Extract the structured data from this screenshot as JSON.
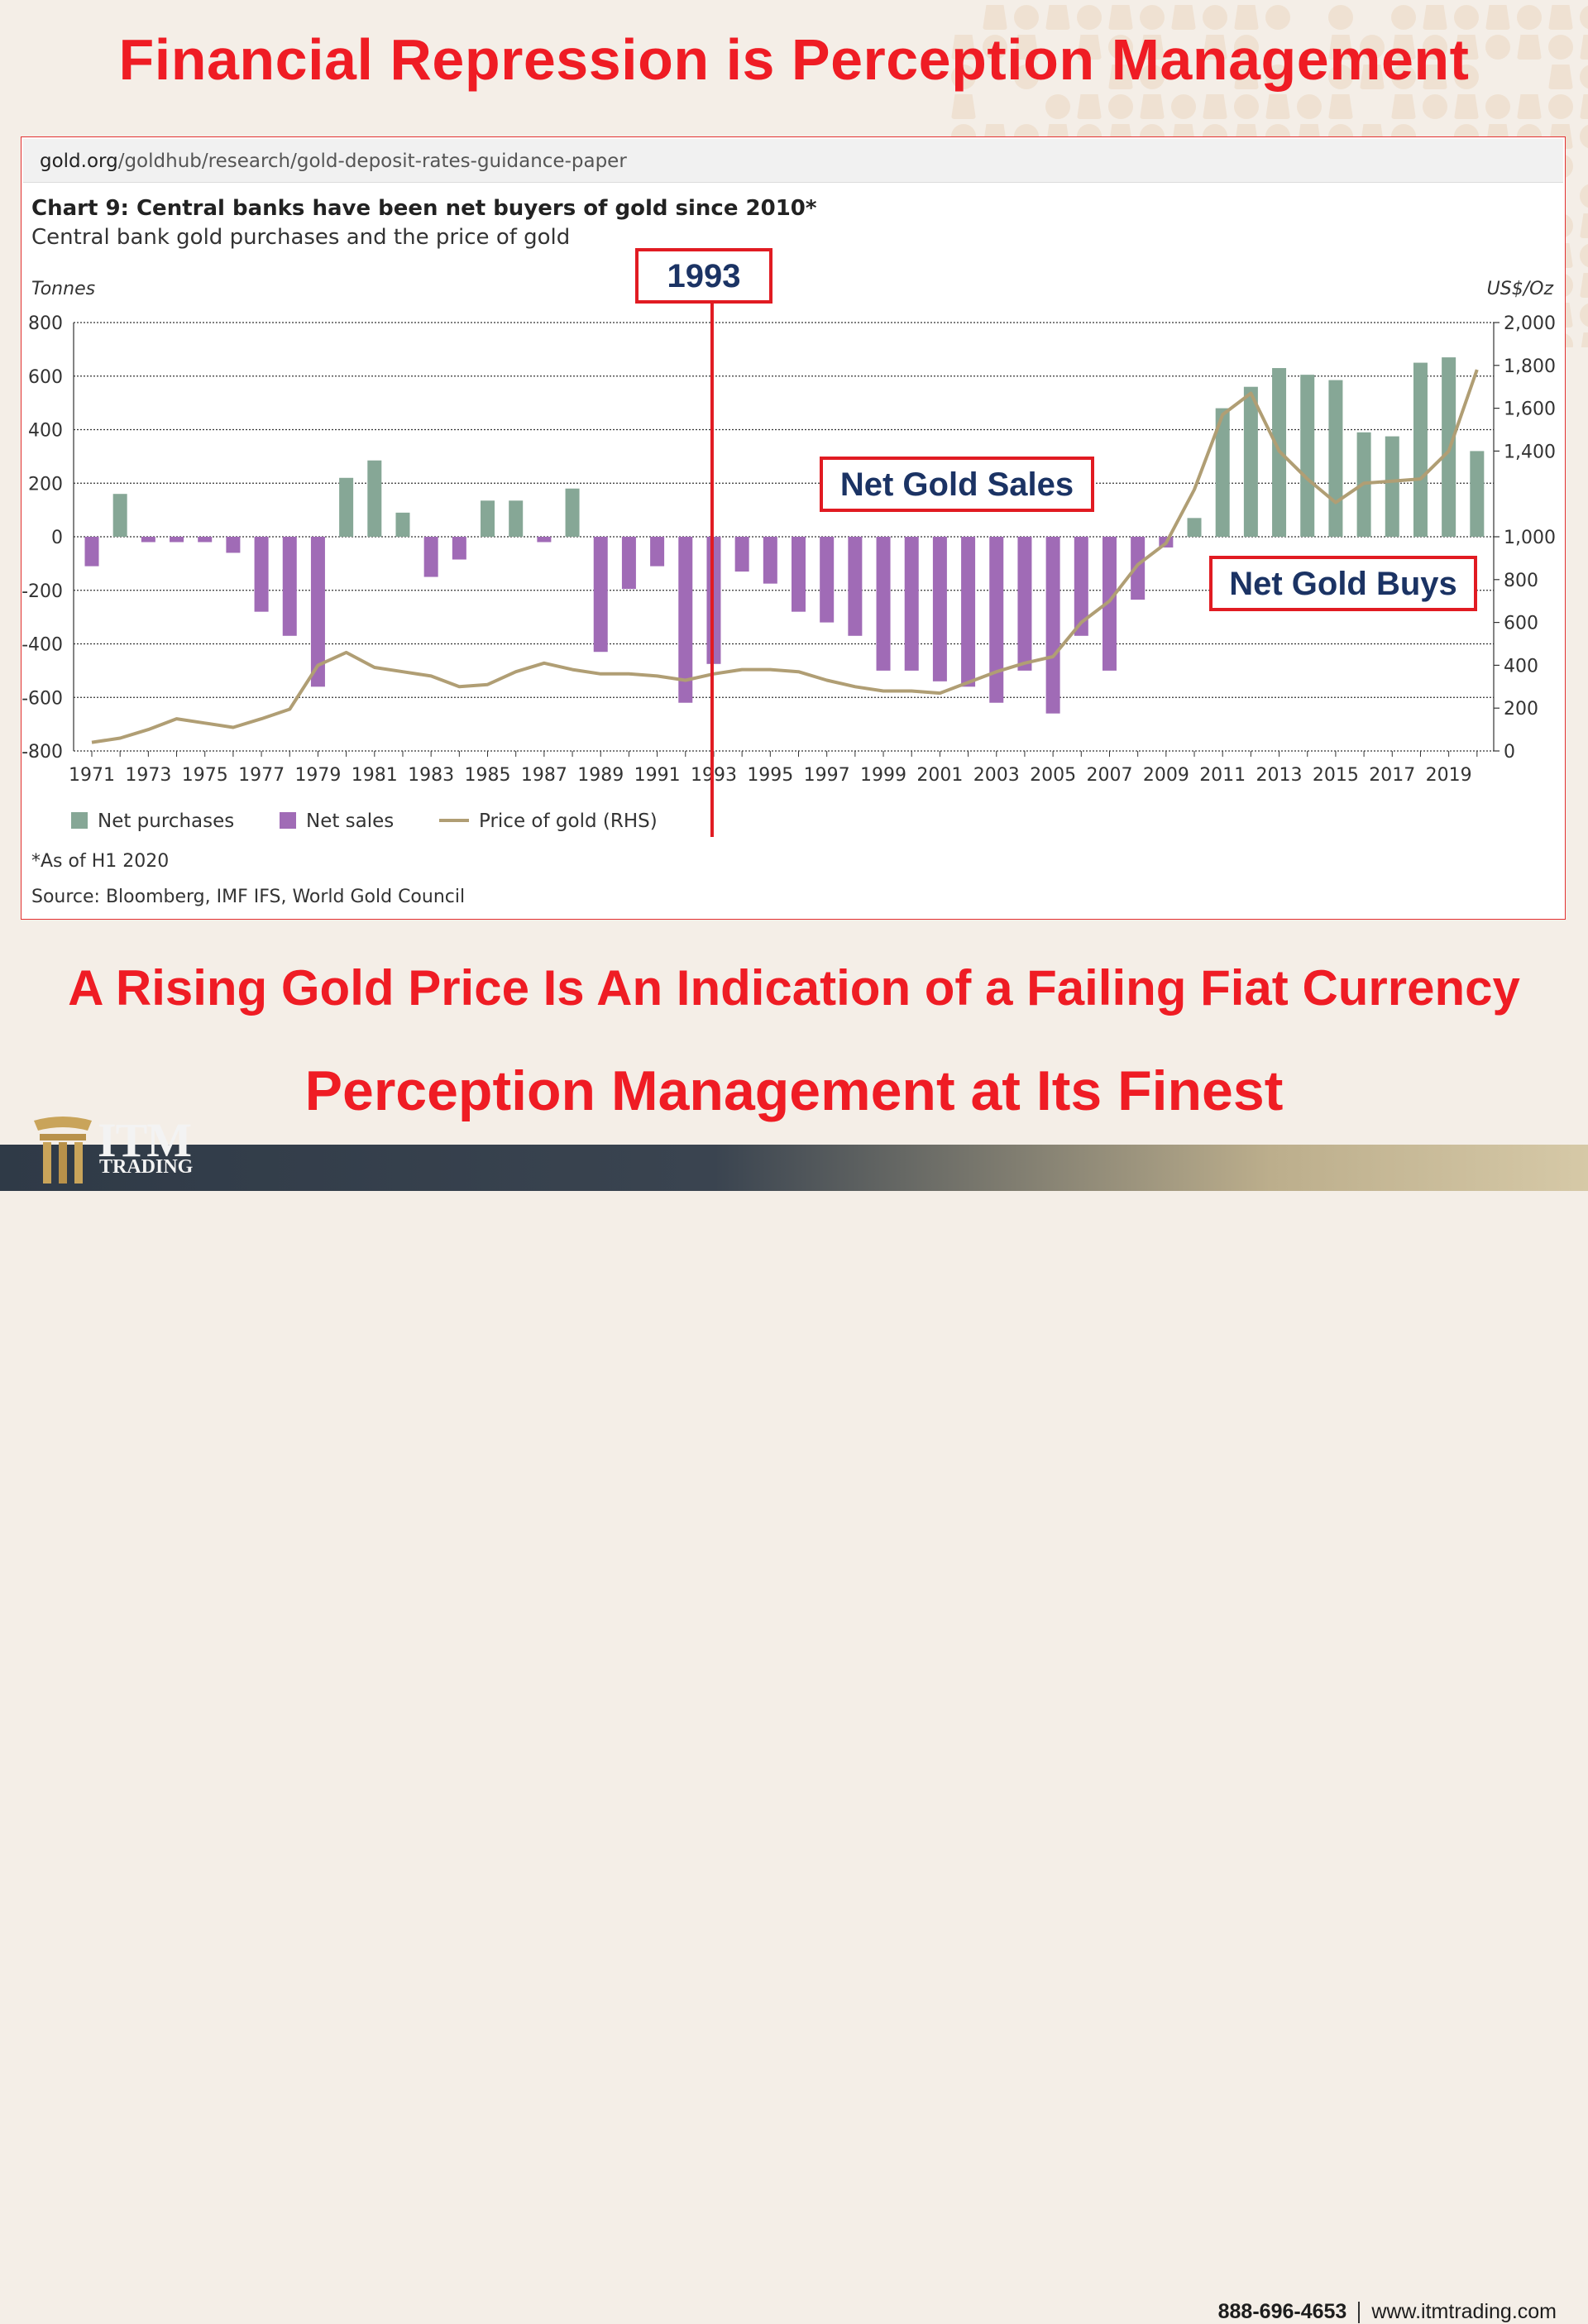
{
  "headline_top": "Financial Repression is Perception Management",
  "headline_mid": "A Rising Gold Price Is An Indication of a Failing Fiat Currency",
  "headline_bottom": "Perception Management at Its Finest",
  "url": {
    "domain": "gold.org",
    "path": "/goldhub/research/gold-deposit-rates-guidance-paper"
  },
  "annotations": {
    "year_marker": "1993",
    "sales_box": "Net Gold Sales",
    "buys_box": "Net Gold Buys"
  },
  "footer": {
    "brand": "ITM",
    "brand_sub": "TRADING",
    "phone": "888-696-4653",
    "website": "www.itmtrading.com"
  },
  "colors": {
    "headline": "#ef1c24",
    "purchases": "#86a796",
    "sales": "#a06bb6",
    "price": "#b09e74",
    "annotation_border": "#e11b22",
    "annotation_text": "#1b3364"
  },
  "chart_data": {
    "type": "bar",
    "title": "Chart 9: Central banks have been net buyers of gold since 2010*",
    "subtitle": "Central bank gold purchases and the price of gold",
    "ylabel": "Tonnes",
    "ylabel_right": "US$/Oz",
    "ylim": [
      -800,
      800
    ],
    "ylim_right": [
      0,
      2000
    ],
    "yticks": [
      "800",
      "600",
      "400",
      "200",
      "0",
      "-200",
      "-400",
      "-600",
      "-800"
    ],
    "yticks_right": [
      "2,000",
      "1,800",
      "1,600",
      "1,400",
      "1,000",
      "800",
      "600",
      "400",
      "200",
      "0"
    ],
    "x": [
      1971,
      1972,
      1973,
      1974,
      1975,
      1976,
      1977,
      1978,
      1979,
      1980,
      1981,
      1982,
      1983,
      1984,
      1985,
      1986,
      1987,
      1988,
      1989,
      1990,
      1991,
      1992,
      1993,
      1994,
      1995,
      1996,
      1997,
      1998,
      1999,
      2000,
      2001,
      2002,
      2003,
      2004,
      2005,
      2006,
      2007,
      2008,
      2009,
      2010,
      2011,
      2012,
      2013,
      2014,
      2015,
      2016,
      2017,
      2018,
      2019,
      2020
    ],
    "xtick_labels": [
      "1971",
      "1973",
      "1975",
      "1977",
      "1979",
      "1981",
      "1983",
      "1985",
      "1987",
      "1989",
      "1991",
      "1993",
      "1995",
      "1997",
      "1999",
      "2001",
      "2003",
      "2005",
      "2007",
      "2009",
      "2011",
      "2013",
      "2015",
      "2017",
      "2019"
    ],
    "series": [
      {
        "name": "Net purchases / Net sales",
        "values": [
          -110,
          160,
          -20,
          -20,
          -20,
          -60,
          -280,
          -370,
          -560,
          220,
          285,
          90,
          -150,
          -85,
          135,
          135,
          -20,
          180,
          -430,
          -195,
          -110,
          -620,
          -475,
          -130,
          -175,
          -280,
          -320,
          -370,
          -500,
          -500,
          -540,
          -560,
          -620,
          -500,
          -660,
          -370,
          -500,
          -235,
          -40,
          70,
          480,
          560,
          630,
          605,
          585,
          390,
          375,
          650,
          670,
          320
        ]
      },
      {
        "name": "Price of gold (RHS)",
        "values": [
          40,
          60,
          100,
          150,
          130,
          110,
          150,
          195,
          400,
          460,
          390,
          370,
          350,
          300,
          310,
          370,
          410,
          380,
          360,
          360,
          350,
          330,
          360,
          380,
          380,
          370,
          330,
          300,
          280,
          280,
          270,
          320,
          370,
          410,
          440,
          600,
          700,
          870,
          970,
          1220,
          1570,
          1670,
          1400,
          1270,
          1160,
          1250,
          1260,
          1270,
          1400,
          1780
        ]
      }
    ],
    "legend": [
      "Net purchases",
      "Net sales",
      "Price of gold (RHS)"
    ],
    "legend_position": "bottom-left",
    "footnote": "*As of H1 2020",
    "source": "Source: Bloomberg, IMF IFS, World Gold Council",
    "grid": true
  }
}
